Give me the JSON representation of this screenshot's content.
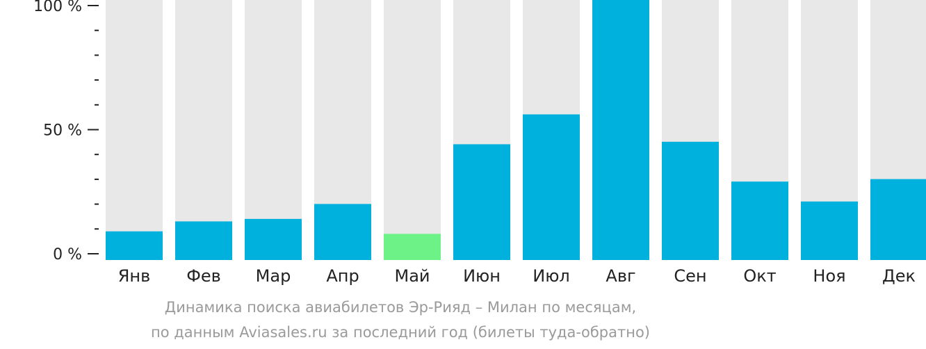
{
  "chart_data": {
    "type": "bar",
    "categories": [
      "Янв",
      "Фев",
      "Мар",
      "Апр",
      "Май",
      "Июн",
      "Июл",
      "Авг",
      "Сен",
      "Окт",
      "Ноя",
      "Дек"
    ],
    "values": [
      9,
      13,
      14,
      20,
      8,
      44,
      56,
      100,
      45,
      29,
      21,
      30
    ],
    "ylim": [
      0,
      100
    ],
    "yticks": [
      0,
      50,
      100
    ],
    "ytick_labels": [
      "0 %",
      "50 %",
      "100 %"
    ],
    "minor_tick_step": 10,
    "highlight_category": "Май",
    "colors": {
      "bar": "#00b1dd",
      "highlight": "#6cf287",
      "background_bar": "#e8e8e8",
      "axis": "#222222"
    },
    "caption": [
      "Динамика поиска авиабилетов Эр-Рияд – Милан по месяцам,",
      "по данным Aviasales.ru за последний год (билеты туда-обратно)"
    ]
  }
}
